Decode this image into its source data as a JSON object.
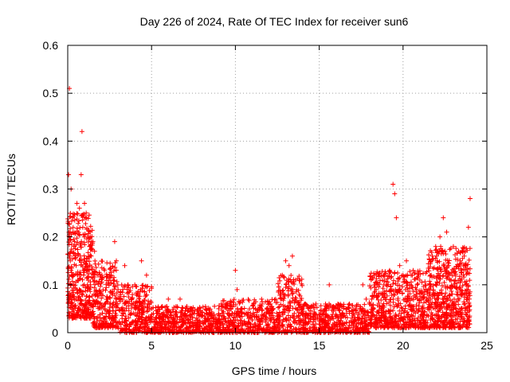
{
  "chart_data": {
    "type": "scatter",
    "title": "Day 226 of 2024, Rate Of TEC Index for receiver sun6",
    "xlabel": "GPS time / hours",
    "ylabel": "ROTI / TECUs",
    "xlim": [
      0,
      25
    ],
    "ylim": [
      0,
      0.6
    ],
    "xticks": [
      "0",
      "5",
      "10",
      "15",
      "20",
      "25"
    ],
    "yticks": [
      "0",
      "0.1",
      "0.2",
      "0.3",
      "0.4",
      "0.5",
      "0.6"
    ],
    "grid": true,
    "marker": "+",
    "series_color": "#ff0000",
    "series": [
      {
        "name": "ROTI",
        "x": [
          0.05,
          0.1,
          0.1,
          0.15,
          0.2,
          0.25,
          0.3,
          0.35,
          0.4,
          0.5,
          0.55,
          0.6,
          0.7,
          0.75,
          0.8,
          0.85,
          0.9,
          0.95,
          1.0,
          1.1,
          1.2,
          1.3,
          1.35,
          1.4,
          1.5,
          1.6,
          1.7,
          1.8,
          1.9,
          2.0,
          2.2,
          2.4,
          2.6,
          2.8,
          2.9,
          3.0,
          3.2,
          3.4,
          3.6,
          3.8,
          4.0,
          4.2,
          4.4,
          4.6,
          4.7,
          4.8,
          5.0,
          5.3,
          5.6,
          6.0,
          6.3,
          6.7,
          7.0,
          7.4,
          7.8,
          8.2,
          8.6,
          9.0,
          9.4,
          9.8,
          10.0,
          10.1,
          10.4,
          10.8,
          11.2,
          11.6,
          12.0,
          12.4,
          12.8,
          13.0,
          13.2,
          13.4,
          13.6,
          13.8,
          14.0,
          14.4,
          14.8,
          15.2,
          15.6,
          16.0,
          16.4,
          16.8,
          17.2,
          17.6,
          17.8,
          18.0,
          18.4,
          18.8,
          19.0,
          19.2,
          19.4,
          19.5,
          19.6,
          19.8,
          20.0,
          20.2,
          20.4,
          20.6,
          20.8,
          21.0,
          21.2,
          21.4,
          21.6,
          21.8,
          22.0,
          22.2,
          22.4,
          22.6,
          22.8,
          23.0,
          23.2,
          23.4,
          23.6,
          23.8,
          23.9,
          24.0
        ],
        "y": [
          0.33,
          0.51,
          0.2,
          0.15,
          0.3,
          0.12,
          0.24,
          0.1,
          0.19,
          0.14,
          0.27,
          0.11,
          0.26,
          0.16,
          0.33,
          0.42,
          0.22,
          0.12,
          0.27,
          0.25,
          0.2,
          0.18,
          0.1,
          0.16,
          0.19,
          0.17,
          0.08,
          0.12,
          0.06,
          0.08,
          0.06,
          0.07,
          0.12,
          0.19,
          0.15,
          0.09,
          0.05,
          0.14,
          0.1,
          0.04,
          0.1,
          0.08,
          0.15,
          0.06,
          0.12,
          0.03,
          0.05,
          0.04,
          0.03,
          0.07,
          0.03,
          0.07,
          0.04,
          0.05,
          0.02,
          0.03,
          0.04,
          0.05,
          0.03,
          0.04,
          0.13,
          0.09,
          0.05,
          0.03,
          0.05,
          0.06,
          0.04,
          0.07,
          0.12,
          0.15,
          0.14,
          0.16,
          0.11,
          0.08,
          0.05,
          0.04,
          0.06,
          0.04,
          0.1,
          0.05,
          0.04,
          0.06,
          0.05,
          0.1,
          0.07,
          0.06,
          0.09,
          0.08,
          0.1,
          0.13,
          0.31,
          0.29,
          0.24,
          0.14,
          0.12,
          0.15,
          0.1,
          0.13,
          0.09,
          0.11,
          0.08,
          0.07,
          0.1,
          0.08,
          0.16,
          0.2,
          0.24,
          0.21,
          0.11,
          0.18,
          0.08,
          0.15,
          0.12,
          0.09,
          0.22,
          0.28
        ]
      }
    ],
    "dense_bands": [
      {
        "x_start": 0.0,
        "x_end": 1.5,
        "y_low": 0.03,
        "y_high": 0.25,
        "density": 26
      },
      {
        "x_start": 1.5,
        "x_end": 3.0,
        "y_low": 0.01,
        "y_high": 0.15,
        "density": 18
      },
      {
        "x_start": 3.0,
        "x_end": 5.0,
        "y_low": 0.0,
        "y_high": 0.1,
        "density": 14
      },
      {
        "x_start": 5.0,
        "x_end": 9.0,
        "y_low": 0.0,
        "y_high": 0.055,
        "density": 12
      },
      {
        "x_start": 9.0,
        "x_end": 12.5,
        "y_low": 0.0,
        "y_high": 0.07,
        "density": 12
      },
      {
        "x_start": 12.5,
        "x_end": 14.0,
        "y_low": 0.0,
        "y_high": 0.12,
        "density": 14
      },
      {
        "x_start": 14.0,
        "x_end": 18.0,
        "y_low": 0.0,
        "y_high": 0.06,
        "density": 12
      },
      {
        "x_start": 18.0,
        "x_end": 21.5,
        "y_low": 0.01,
        "y_high": 0.13,
        "density": 16
      },
      {
        "x_start": 21.5,
        "x_end": 24.0,
        "y_low": 0.01,
        "y_high": 0.18,
        "density": 22
      }
    ]
  }
}
